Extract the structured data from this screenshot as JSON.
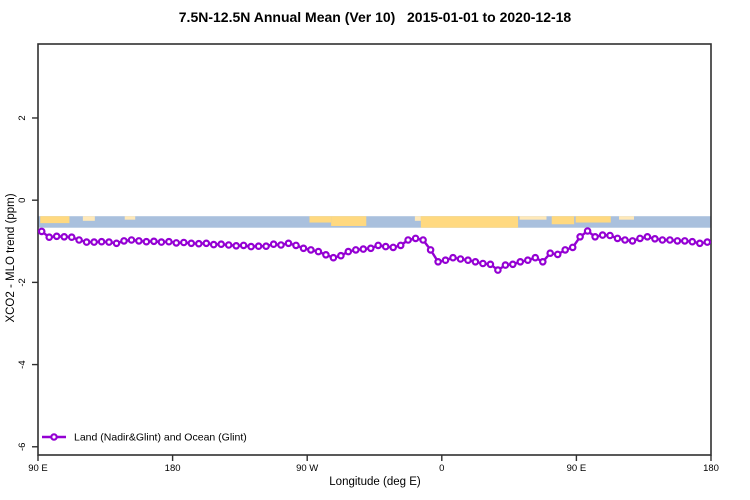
{
  "chart_data": {
    "type": "line",
    "title": "7.5N-12.5N Annual Mean (Ver 10)   2015-01-01 to 2020-12-18",
    "xlabel": "Longitude (deg E)",
    "ylabel": "XCO2 - MLO trend (ppm)",
    "xlim_deg_e": [
      90,
      540
    ],
    "ylim_ppm": [
      -6.2,
      3.8
    ],
    "grid": false,
    "x_ticks": [
      {
        "deg": 90,
        "label": "90 E"
      },
      {
        "deg": 180,
        "label": "180"
      },
      {
        "deg": 270,
        "label": "90 W"
      },
      {
        "deg": 360,
        "label": "0"
      },
      {
        "deg": 450,
        "label": "90 E"
      },
      {
        "deg": 540,
        "label": "180"
      }
    ],
    "y_ticks": [
      {
        "value": 2,
        "label": "2"
      },
      {
        "value": 0,
        "label": "0"
      },
      {
        "value": -2,
        "label": "-2"
      },
      {
        "value": -4,
        "label": "-4"
      },
      {
        "value": -6,
        "label": "-6"
      }
    ],
    "legend_position": "bottom-left",
    "series": [
      {
        "name": "Land (Nadir&Glint) and Ocean (Glint)",
        "color": "#9400D3",
        "marker": "open-circle",
        "x_deg_e": [
          92.5,
          97.5,
          102.5,
          107.5,
          112.5,
          117.5,
          122.5,
          127.5,
          132.5,
          137.5,
          142.5,
          147.5,
          152.5,
          157.5,
          162.5,
          167.5,
          172.5,
          177.5,
          182.5,
          187.5,
          192.5,
          197.5,
          202.5,
          207.5,
          212.5,
          217.5,
          222.5,
          227.5,
          232.5,
          237.5,
          242.5,
          247.5,
          252.5,
          257.5,
          262.5,
          267.5,
          272.5,
          277.5,
          282.5,
          287.5,
          292.5,
          297.5,
          302.5,
          307.5,
          312.5,
          317.5,
          322.5,
          327.5,
          332.5,
          337.5,
          342.5,
          347.5,
          352.5,
          357.5,
          362.5,
          367.5,
          372.5,
          377.5,
          382.5,
          387.5,
          392.5,
          397.5,
          402.5,
          407.5,
          412.5,
          417.5,
          422.5,
          427.5,
          432.5,
          437.5,
          442.5,
          447.5,
          452.5,
          457.5,
          462.5,
          467.5,
          472.5,
          477.5,
          482.5,
          487.5,
          492.5,
          497.5,
          502.5,
          507.5,
          512.5,
          517.5,
          522.5,
          527.5,
          532.5,
          537.5
        ],
        "y_ppm": [
          -0.76,
          -0.9,
          -0.88,
          -0.89,
          -0.9,
          -0.97,
          -1.02,
          -1.02,
          -1.01,
          -1.02,
          -1.05,
          -0.99,
          -0.97,
          -0.99,
          -1.01,
          -1.0,
          -1.02,
          -1.01,
          -1.04,
          -1.03,
          -1.05,
          -1.06,
          -1.05,
          -1.08,
          -1.07,
          -1.09,
          -1.11,
          -1.1,
          -1.13,
          -1.12,
          -1.12,
          -1.07,
          -1.09,
          -1.05,
          -1.1,
          -1.17,
          -1.21,
          -1.25,
          -1.33,
          -1.4,
          -1.35,
          -1.25,
          -1.21,
          -1.19,
          -1.17,
          -1.1,
          -1.13,
          -1.15,
          -1.1,
          -0.97,
          -0.93,
          -0.97,
          -1.21,
          -1.5,
          -1.46,
          -1.4,
          -1.43,
          -1.46,
          -1.5,
          -1.54,
          -1.56,
          -1.7,
          -1.58,
          -1.56,
          -1.5,
          -1.46,
          -1.4,
          -1.5,
          -1.29,
          -1.32,
          -1.21,
          -1.15,
          -0.89,
          -0.75,
          -0.89,
          -0.85,
          -0.86,
          -0.93,
          -0.97,
          -0.99,
          -0.93,
          -0.89,
          -0.94,
          -0.97,
          -0.97,
          -0.99,
          -0.99,
          -1.01,
          -1.05,
          -1.02
        ]
      }
    ],
    "map_strip": {
      "description": "coastline strip map",
      "ocean_color": "#A9C0DD",
      "land_color": "#FFD980",
      "land_color_pale": "#FFE9B9",
      "y_range_ppm": [
        -0.39,
        -0.67
      ],
      "land_segments_deg_e": [
        {
          "from": 91.5,
          "to": 111,
          "cover": 0.6,
          "pale": false
        },
        {
          "from": 120,
          "to": 128,
          "cover": 0.4,
          "pale": true
        },
        {
          "from": 148,
          "to": 155,
          "cover": 0.3,
          "pale": true
        },
        {
          "from": 271.5,
          "to": 286,
          "cover": 0.55,
          "pale": false
        },
        {
          "from": 286,
          "to": 309.5,
          "cover": 0.85,
          "pale": false
        },
        {
          "from": 342,
          "to": 346,
          "cover": 0.4,
          "pale": true
        },
        {
          "from": 346,
          "to": 411,
          "cover": 1.0,
          "pale": false
        },
        {
          "from": 412,
          "to": 430,
          "cover": 0.3,
          "pale": true
        },
        {
          "from": 433.5,
          "to": 448.5,
          "cover": 0.7,
          "pale": false
        },
        {
          "from": 449.5,
          "to": 473,
          "cover": 0.55,
          "pale": false
        },
        {
          "from": 478.5,
          "to": 488.5,
          "cover": 0.3,
          "pale": true
        }
      ]
    },
    "style": {
      "axis_color": "#303030",
      "text_color": "#000000",
      "marker_fill": "#ffffff"
    }
  }
}
